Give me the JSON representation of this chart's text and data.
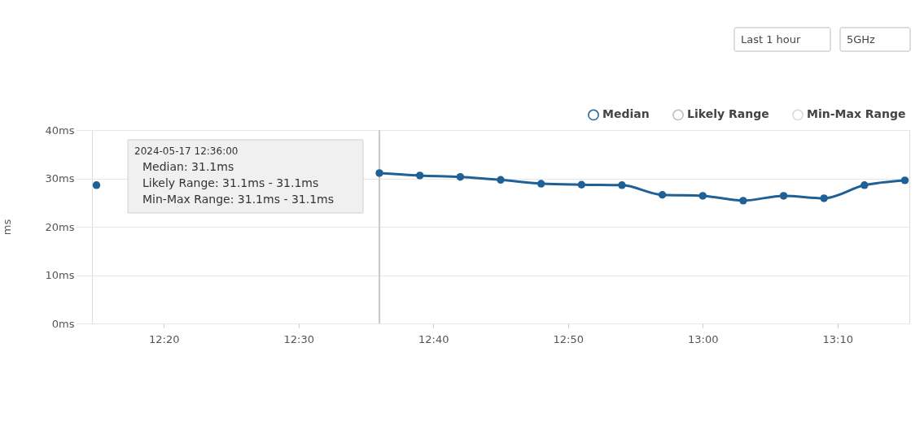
{
  "chart_data": {
    "type": "line",
    "x": [
      "2024-05-17T12:15",
      "2024-05-17T12:18",
      "2024-05-17T12:21",
      "2024-05-17T12:24",
      "2024-05-17T12:27",
      "2024-05-17T12:30",
      "2024-05-17T12:33",
      "2024-05-17T12:36",
      "2024-05-17T12:39",
      "2024-05-17T12:42",
      "2024-05-17T12:45",
      "2024-05-17T12:48",
      "2024-05-17T12:51",
      "2024-05-17T12:54",
      "2024-05-17T12:57",
      "2024-05-17T13:00",
      "2024-05-17T13:03",
      "2024-05-17T13:06",
      "2024-05-17T13:09",
      "2024-05-17T13:12",
      "2024-05-17T13:15"
    ],
    "series": [
      {
        "name": "Median",
        "color": "#1f6096",
        "values": [
          28.6,
          null,
          null,
          null,
          null,
          null,
          null,
          31.1,
          30.6,
          30.3,
          29.7,
          28.9,
          28.7,
          28.6,
          26.6,
          26.4,
          25.4,
          26.4,
          25.9,
          28.6,
          29.6
        ]
      },
      {
        "name": "Likely Range",
        "color": "#bdbdbd",
        "values": [
          null,
          null,
          null,
          null,
          null,
          null,
          null,
          null,
          null,
          null,
          null,
          null,
          null,
          null,
          null,
          null,
          null,
          null,
          null,
          null,
          null
        ]
      },
      {
        "name": "Min-Max Range",
        "color": "#d9d9d9",
        "values": [
          null,
          null,
          null,
          null,
          null,
          null,
          null,
          null,
          null,
          null,
          null,
          null,
          null,
          null,
          null,
          null,
          null,
          null,
          null,
          null,
          null
        ]
      }
    ],
    "ylabel": "ms",
    "xlim": [
      "2024-05-17T12:14:40",
      "2024-05-17T13:15:20"
    ],
    "xticks": [
      {
        "value": "2024-05-17T12:20",
        "label": "12:20"
      },
      {
        "value": "2024-05-17T12:30",
        "label": "12:30"
      },
      {
        "value": "2024-05-17T12:40",
        "label": "12:40"
      },
      {
        "value": "2024-05-17T12:50",
        "label": "12:50"
      },
      {
        "value": "2024-05-17T13:00",
        "label": "13:00"
      },
      {
        "value": "2024-05-17T13:10",
        "label": "13:10"
      }
    ],
    "ylim": [
      0,
      40
    ],
    "yticks": [
      {
        "value": 0,
        "label": "0ms"
      },
      {
        "value": 10,
        "label": "10ms"
      },
      {
        "value": 20,
        "label": "20ms"
      },
      {
        "value": 30,
        "label": "30ms"
      },
      {
        "value": 40,
        "label": "40ms"
      }
    ],
    "ref_lines": [
      {
        "axis": "x",
        "value": "2024-05-17T12:36",
        "color": "#c8c8c8"
      }
    ],
    "annotations": [
      "2024-05-17 12:36:00",
      "Median: 31.1ms",
      "Likely Range: 31.1ms - 31.1ms",
      "Min-Max Range: 31.1ms - 31.1ms",
      "Last 1 hour",
      "5GHz"
    ],
    "grid": "y",
    "legend": "top right",
    "marker": "circle",
    "line_style": "solid"
  }
}
